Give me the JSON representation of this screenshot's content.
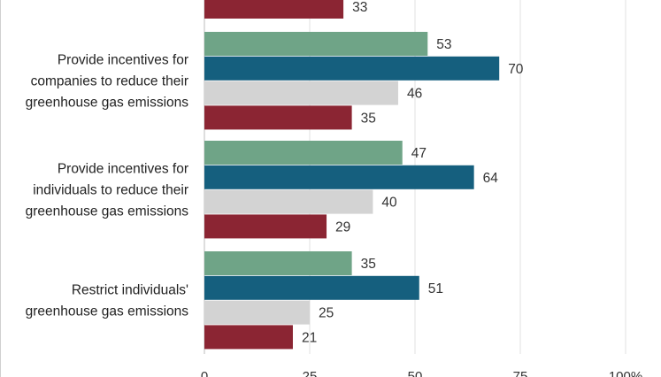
{
  "chart_data": {
    "type": "bar",
    "orientation": "horizontal",
    "categories": [
      [
        "Provide incentives for",
        "companies to reduce their",
        "greenhouse gas emissions"
      ],
      [
        "Provide incentives for",
        "individuals to reduce their",
        "greenhouse gas emissions"
      ],
      [
        "Restrict individuals'",
        "greenhouse gas emissions"
      ]
    ],
    "series": [
      {
        "values": [
          53,
          47,
          35
        ],
        "color": "#6fa487"
      },
      {
        "values": [
          70,
          64,
          51
        ],
        "color": "#155f7e"
      },
      {
        "values": [
          46,
          40,
          25
        ],
        "color": "#d3d3d3"
      },
      {
        "values": [
          35,
          29,
          21
        ],
        "color": "#8b2533"
      }
    ],
    "partial_top_bar": {
      "value": 33,
      "color": "#8b2533"
    },
    "xlim": [
      0,
      100
    ],
    "xticks": [
      {
        "value": 0,
        "label": "0"
      },
      {
        "value": 25,
        "label": "25"
      },
      {
        "value": 50,
        "label": "50"
      },
      {
        "value": 75,
        "label": "75"
      },
      {
        "value": 100,
        "label": "100%"
      }
    ],
    "grid": true
  }
}
